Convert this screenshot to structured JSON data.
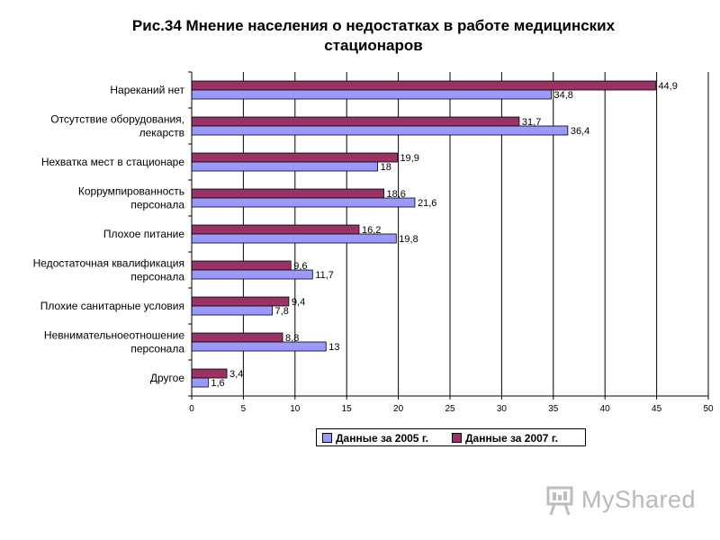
{
  "title": {
    "line1": "Рис.34   Мнение населения о недостатках в работе  медицинских",
    "line2": "стационаров"
  },
  "chart_data": {
    "type": "bar",
    "orientation": "horizontal",
    "categories": [
      [
        "Нареканий нет"
      ],
      [
        "Отсутствие оборудования,",
        "лекарств"
      ],
      [
        "Нехватка мест в стационаре"
      ],
      [
        "Коррумпированность",
        "персонала"
      ],
      [
        "Плохое питание"
      ],
      [
        "Недостаточная квалификация",
        "персонала"
      ],
      [
        "Плохие санитарные условия"
      ],
      [
        "Невнимательноеотношение",
        "персонала"
      ],
      [
        "Другое"
      ]
    ],
    "series": [
      {
        "name": "Данные за 2005 г.",
        "color": "#9999ff",
        "values": [
          34.8,
          36.4,
          18,
          21.6,
          19.8,
          11.7,
          7.8,
          13,
          1.6
        ],
        "labels": [
          "34,8",
          "36,4",
          "18",
          "21,6",
          "19,8",
          "11,7",
          "7,8",
          "13",
          "1,6"
        ]
      },
      {
        "name": "Данные за 2007 г.",
        "color": "#993366",
        "values": [
          44.9,
          31.7,
          19.9,
          18.6,
          16.2,
          9.6,
          9.4,
          8.8,
          3.4
        ],
        "labels": [
          "44,9",
          "31,7",
          "19,9",
          "18,6",
          "16,2",
          "9,6",
          "9,4",
          "8,8",
          "3,4"
        ]
      }
    ],
    "xlim": [
      0,
      50
    ],
    "xticks": [
      0,
      5,
      10,
      15,
      20,
      25,
      30,
      35,
      40,
      45,
      50
    ],
    "xlabel": "",
    "ylabel": "",
    "grid": "vertical",
    "legend": "bottom"
  },
  "watermark": {
    "text": "MyShared",
    "icon": "presentation-board-icon"
  }
}
